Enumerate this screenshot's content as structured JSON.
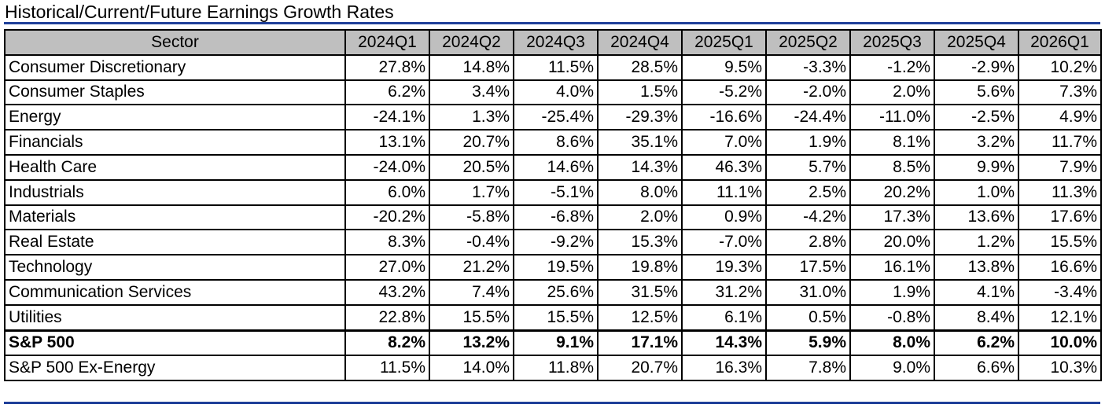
{
  "title": "Historical/Current/Future Earnings Growth Rates",
  "colors": {
    "rule": "#1f3f99",
    "header_bg": "#bfbfbf"
  },
  "chart_data": {
    "type": "table",
    "title": "Historical/Current/Future Earnings Growth Rates",
    "columns": [
      "Sector",
      "2024Q1",
      "2024Q2",
      "2024Q3",
      "2024Q4",
      "2025Q1",
      "2025Q2",
      "2025Q3",
      "2025Q4",
      "2026Q1"
    ],
    "rows": [
      {
        "sector": "Consumer Discretionary",
        "values": [
          "27.8%",
          "14.8%",
          "11.5%",
          "28.5%",
          "9.5%",
          "-3.3%",
          "-1.2%",
          "-2.9%",
          "10.2%"
        ]
      },
      {
        "sector": "Consumer Staples",
        "values": [
          "6.2%",
          "3.4%",
          "4.0%",
          "1.5%",
          "-5.2%",
          "-2.0%",
          "2.0%",
          "5.6%",
          "7.3%"
        ]
      },
      {
        "sector": "Energy",
        "values": [
          "-24.1%",
          "1.3%",
          "-25.4%",
          "-29.3%",
          "-16.6%",
          "-24.4%",
          "-11.0%",
          "-2.5%",
          "4.9%"
        ]
      },
      {
        "sector": "Financials",
        "values": [
          "13.1%",
          "20.7%",
          "8.6%",
          "35.1%",
          "7.0%",
          "1.9%",
          "8.1%",
          "3.2%",
          "11.7%"
        ]
      },
      {
        "sector": "Health Care",
        "values": [
          "-24.0%",
          "20.5%",
          "14.6%",
          "14.3%",
          "46.3%",
          "5.7%",
          "8.5%",
          "9.9%",
          "7.9%"
        ]
      },
      {
        "sector": "Industrials",
        "values": [
          "6.0%",
          "1.7%",
          "-5.1%",
          "8.0%",
          "11.1%",
          "2.5%",
          "20.2%",
          "1.0%",
          "11.3%"
        ]
      },
      {
        "sector": "Materials",
        "values": [
          "-20.2%",
          "-5.8%",
          "-6.8%",
          "2.0%",
          "0.9%",
          "-4.2%",
          "17.3%",
          "13.6%",
          "17.6%"
        ]
      },
      {
        "sector": "Real Estate",
        "values": [
          "8.3%",
          "-0.4%",
          "-9.2%",
          "15.3%",
          "-7.0%",
          "2.8%",
          "20.0%",
          "1.2%",
          "15.5%"
        ]
      },
      {
        "sector": "Technology",
        "values": [
          "27.0%",
          "21.2%",
          "19.5%",
          "19.8%",
          "19.3%",
          "17.5%",
          "16.1%",
          "13.8%",
          "16.6%"
        ]
      },
      {
        "sector": "Communication Services",
        "values": [
          "43.2%",
          "7.4%",
          "25.6%",
          "31.5%",
          "31.2%",
          "31.0%",
          "1.9%",
          "4.1%",
          "-3.4%"
        ]
      },
      {
        "sector": "Utilities",
        "values": [
          "22.8%",
          "15.5%",
          "15.5%",
          "12.5%",
          "6.1%",
          "0.5%",
          "-0.8%",
          "8.4%",
          "12.1%"
        ]
      },
      {
        "sector": "S&P 500",
        "bold": true,
        "values": [
          "8.2%",
          "13.2%",
          "9.1%",
          "17.1%",
          "14.3%",
          "5.9%",
          "8.0%",
          "6.2%",
          "10.0%"
        ]
      },
      {
        "sector": "S&P 500 Ex-Energy",
        "values": [
          "11.5%",
          "14.0%",
          "11.8%",
          "20.7%",
          "16.3%",
          "7.8%",
          "9.0%",
          "6.6%",
          "10.3%"
        ]
      }
    ]
  }
}
